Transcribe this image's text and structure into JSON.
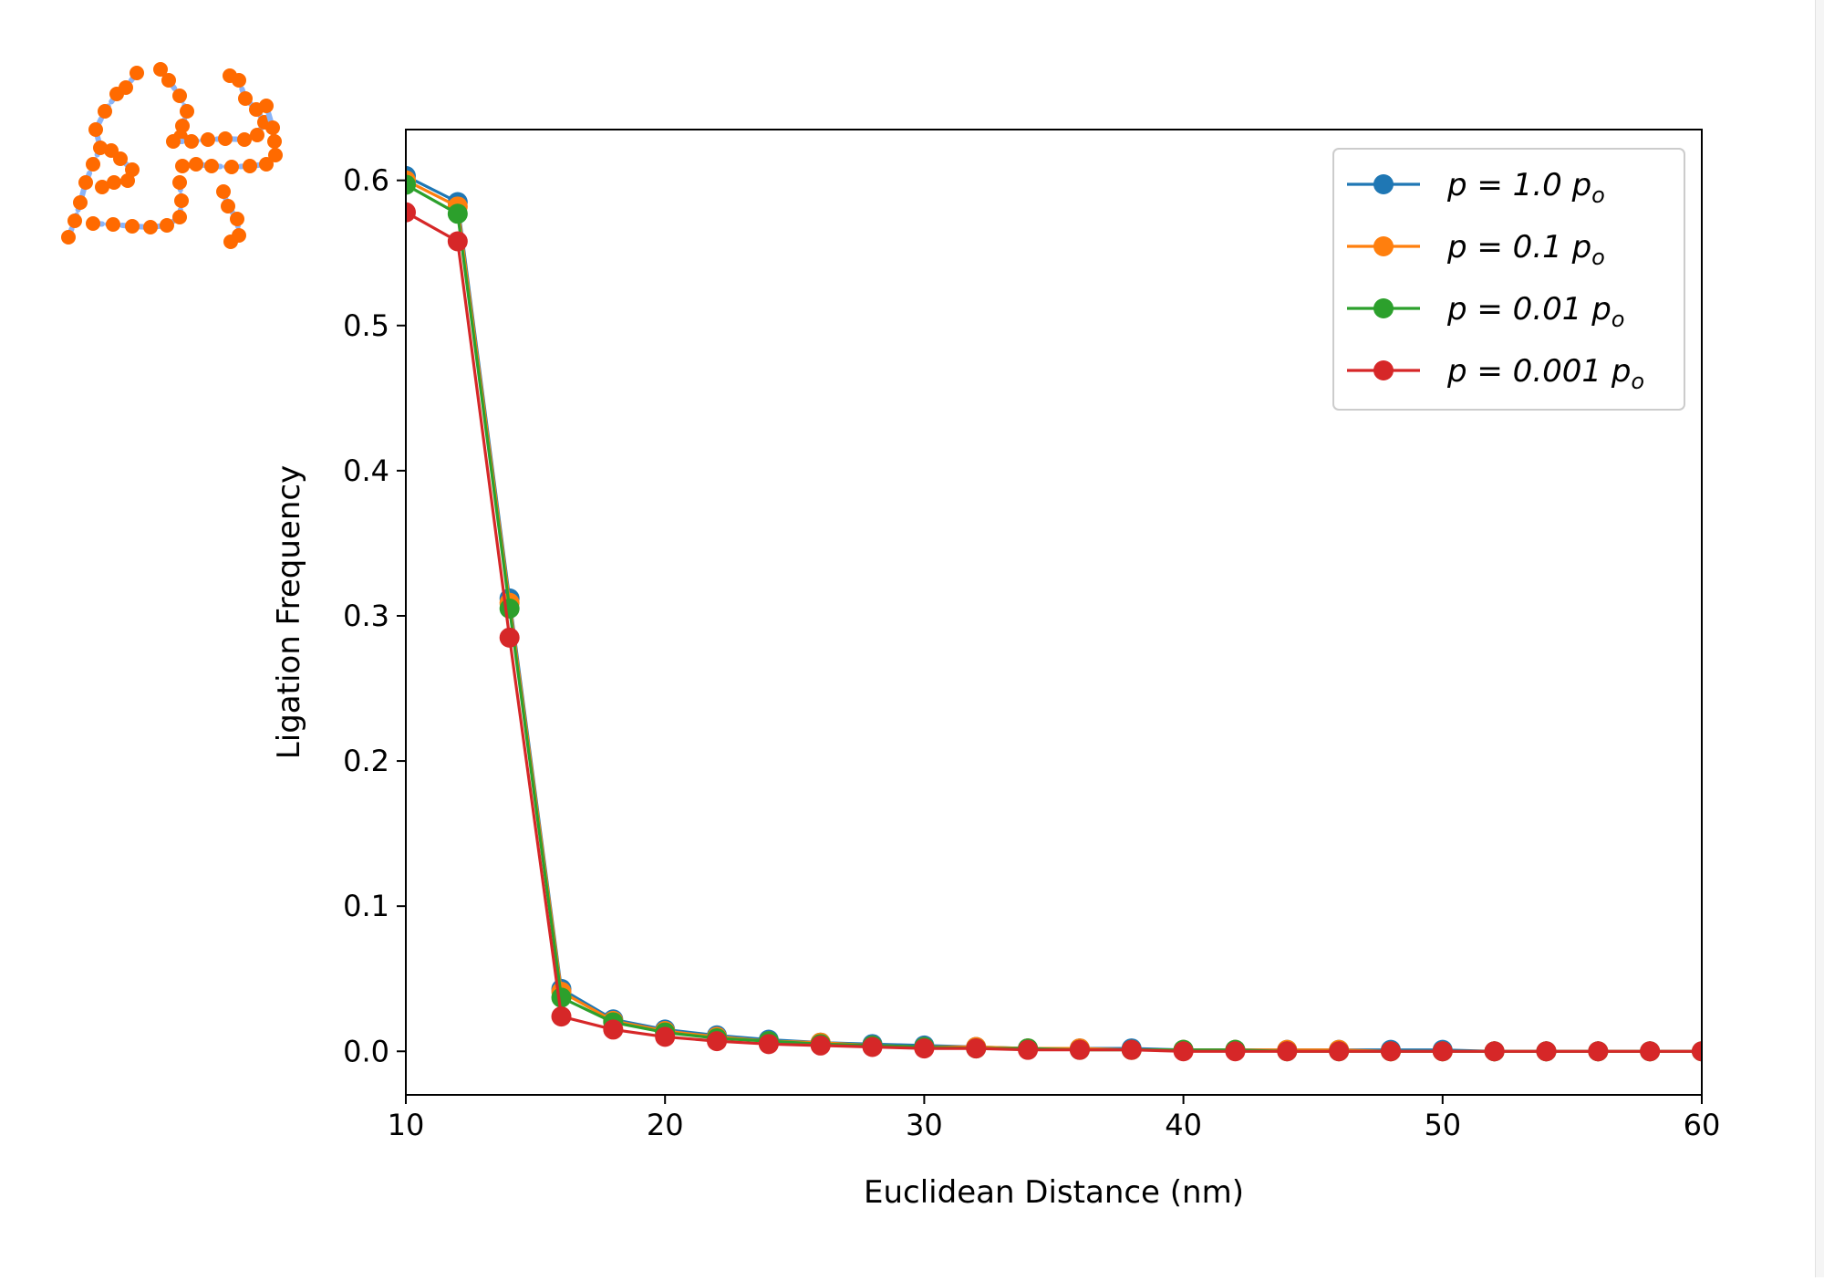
{
  "chart_data": {
    "type": "line",
    "xlabel": "Euclidean Distance (nm)",
    "ylabel": "Ligation Frequency",
    "xlim": [
      10,
      60
    ],
    "ylim": [
      -0.03,
      0.635
    ],
    "xticks": [
      10,
      20,
      30,
      40,
      50,
      60
    ],
    "yticks": [
      0.0,
      0.1,
      0.2,
      0.3,
      0.4,
      0.5,
      0.6
    ],
    "xtick_labels": [
      "10",
      "20",
      "30",
      "40",
      "50",
      "60"
    ],
    "ytick_labels": [
      "0.0",
      "0.1",
      "0.2",
      "0.3",
      "0.4",
      "0.5",
      "0.6"
    ],
    "grid": false,
    "legend_position": "top-right",
    "marker": "circle",
    "x": [
      10,
      12,
      14,
      16,
      18,
      20,
      22,
      24,
      26,
      28,
      30,
      32,
      34,
      36,
      38,
      40,
      42,
      44,
      46,
      48,
      50,
      52,
      54,
      56,
      58,
      60
    ],
    "series": [
      {
        "name": "p = 1.0 p_o",
        "label_main": "p = 1.0 ",
        "label_sub": "p",
        "label_subscript": "o",
        "color": "#1f77b4",
        "values": [
          0.603,
          0.585,
          0.312,
          0.043,
          0.022,
          0.015,
          0.011,
          0.008,
          0.006,
          0.005,
          0.004,
          0.003,
          0.002,
          0.002,
          0.002,
          0.001,
          0.001,
          0.001,
          0.001,
          0.001,
          0.001,
          0.0,
          0.0,
          0.0,
          0.0,
          0.0
        ]
      },
      {
        "name": "p = 0.1 p_o",
        "label_main": "p = 0.1 ",
        "label_sub": "p",
        "label_subscript": "o",
        "color": "#ff7f0e",
        "values": [
          0.6,
          0.582,
          0.309,
          0.041,
          0.021,
          0.014,
          0.01,
          0.007,
          0.006,
          0.004,
          0.003,
          0.003,
          0.002,
          0.002,
          0.001,
          0.001,
          0.001,
          0.001,
          0.001,
          0.0,
          0.0,
          0.0,
          0.0,
          0.0,
          0.0,
          0.0
        ]
      },
      {
        "name": "p = 0.01 p_o",
        "label_main": "p = 0.01 ",
        "label_sub": "p",
        "label_subscript": "o",
        "color": "#2ca02c",
        "values": [
          0.597,
          0.577,
          0.305,
          0.037,
          0.02,
          0.013,
          0.009,
          0.007,
          0.005,
          0.004,
          0.003,
          0.002,
          0.002,
          0.001,
          0.001,
          0.001,
          0.001,
          0.0,
          0.0,
          0.0,
          0.0,
          0.0,
          0.0,
          0.0,
          0.0,
          0.0
        ]
      },
      {
        "name": "p = 0.001 p_o",
        "label_main": "p = 0.001 ",
        "label_sub": "p",
        "label_subscript": "o",
        "color": "#d62728",
        "values": [
          0.578,
          0.558,
          0.285,
          0.024,
          0.015,
          0.01,
          0.007,
          0.005,
          0.004,
          0.003,
          0.002,
          0.002,
          0.001,
          0.001,
          0.001,
          0.0,
          0.0,
          0.0,
          0.0,
          0.0,
          0.0,
          0.0,
          0.0,
          0.0,
          0.0,
          0.0
        ]
      }
    ]
  },
  "logo": {
    "name": "dotted-polymer-logo",
    "dot_color": "#ff6a00",
    "line_color": "#8ab4f8"
  },
  "colors": {
    "axis": "#000000",
    "background": "#ffffff"
  }
}
